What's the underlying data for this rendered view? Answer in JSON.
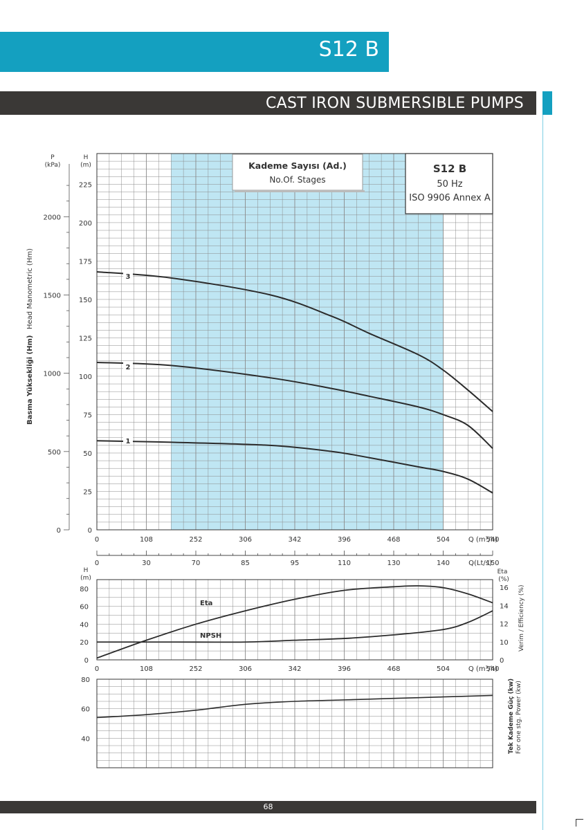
{
  "header": {
    "model_title": "S12 B",
    "category_title": "CAST IRON SUBMERSIBLE PUMPS"
  },
  "footer": {
    "page_number": "68"
  },
  "colors": {
    "accent": "#14a0c0",
    "dark": "#3a3836",
    "shade": "#bfe6f3",
    "grid": "#8a8a8a",
    "curve": "#2b2b2b"
  },
  "legend_box": {
    "title": "Kademe Sayısı (Ad.)",
    "subtitle": "No.Of. Stages"
  },
  "spec_box": {
    "model": "S12 B",
    "frequency": "50 Hz",
    "standard": "ISO 9906 Annex A"
  },
  "chart_data": [
    {
      "type": "line",
      "title": "",
      "left_axis_label": "Basma Yüksekliği (Hm)",
      "left_axis_label_2": "Head Manometric (Hm)",
      "p_axis_label": "P",
      "p_axis_unit": "(kPa)",
      "h_axis_label": "H",
      "h_axis_unit": "(m)",
      "p_ticks": [
        "0",
        "500",
        "1000",
        "1500",
        "2000"
      ],
      "y_ticks": [
        "0",
        "25",
        "50",
        "75",
        "100",
        "125",
        "150",
        "175",
        "200",
        "225"
      ],
      "ylim": [
        0,
        245
      ],
      "x_ticks_m3h": [
        "0",
        "108",
        "252",
        "306",
        "342",
        "396",
        "468",
        "504",
        "540"
      ],
      "x_ticks_lts": [
        "0",
        "30",
        "70",
        "85",
        "95",
        "110",
        "130",
        "140",
        "150"
      ],
      "x_unit_m3h": "Q (m³/h)",
      "x_unit_lts": "Q(Lt/s)",
      "shaded_range_lts": [
        30,
        140
      ],
      "series": [
        {
          "name": "3",
          "q_lts": [
            0,
            30,
            70,
            95,
            110,
            130,
            140,
            150,
            160
          ],
          "h": [
            168,
            164,
            153,
            139,
            128,
            114,
            104,
            91,
            77
          ]
        },
        {
          "name": "2",
          "q_lts": [
            0,
            30,
            70,
            95,
            110,
            130,
            140,
            150,
            160
          ],
          "h": [
            109,
            107,
            99,
            92,
            87,
            80,
            75,
            68,
            53
          ]
        },
        {
          "name": "1",
          "q_lts": [
            0,
            30,
            70,
            95,
            110,
            130,
            140,
            150,
            160
          ],
          "h": [
            58,
            57,
            55,
            51,
            47,
            41,
            38,
            33,
            24
          ]
        }
      ]
    },
    {
      "type": "line",
      "title": "",
      "h_axis_label": "H",
      "h_axis_unit": "(m)",
      "eta_axis_label": "Eta",
      "eta_axis_unit": "(%)",
      "right_axis_label": "Verim / Efficiency  (%)",
      "y_ticks": [
        "0",
        "20",
        "40",
        "60",
        "80"
      ],
      "y_right_ticks": [
        "0",
        "10",
        "12",
        "14",
        "16"
      ],
      "ylim": [
        0,
        90
      ],
      "x_ticks_m3h": [
        "0",
        "108",
        "252",
        "306",
        "342",
        "396",
        "468",
        "504",
        "540"
      ],
      "x_unit_m3h": "Q (m³/h)",
      "series": [
        {
          "name": "Eta",
          "q_lts": [
            0,
            20,
            40,
            60,
            80,
            100,
            120,
            130,
            140,
            150,
            160
          ],
          "y": [
            2,
            22,
            40,
            55,
            68,
            78,
            82,
            83,
            81,
            74,
            64
          ]
        },
        {
          "name": "NPSH",
          "q_lts": [
            0,
            30,
            60,
            80,
            100,
            120,
            140,
            150,
            160
          ],
          "y": [
            20,
            20,
            20,
            22,
            24,
            28,
            34,
            42,
            55
          ]
        }
      ]
    },
    {
      "type": "line",
      "title": "",
      "right_axis_label": "Tek Kademe Güç (kw)",
      "right_axis_label_2": "For one stg. Power (kw)",
      "y_ticks": [
        "40",
        "60",
        "80"
      ],
      "ylim": [
        20,
        80
      ],
      "series": [
        {
          "name": "",
          "q_lts": [
            0,
            20,
            40,
            60,
            80,
            100,
            120,
            140,
            160
          ],
          "y": [
            54,
            56,
            59,
            63,
            65,
            66,
            67,
            68,
            69
          ]
        }
      ]
    }
  ]
}
